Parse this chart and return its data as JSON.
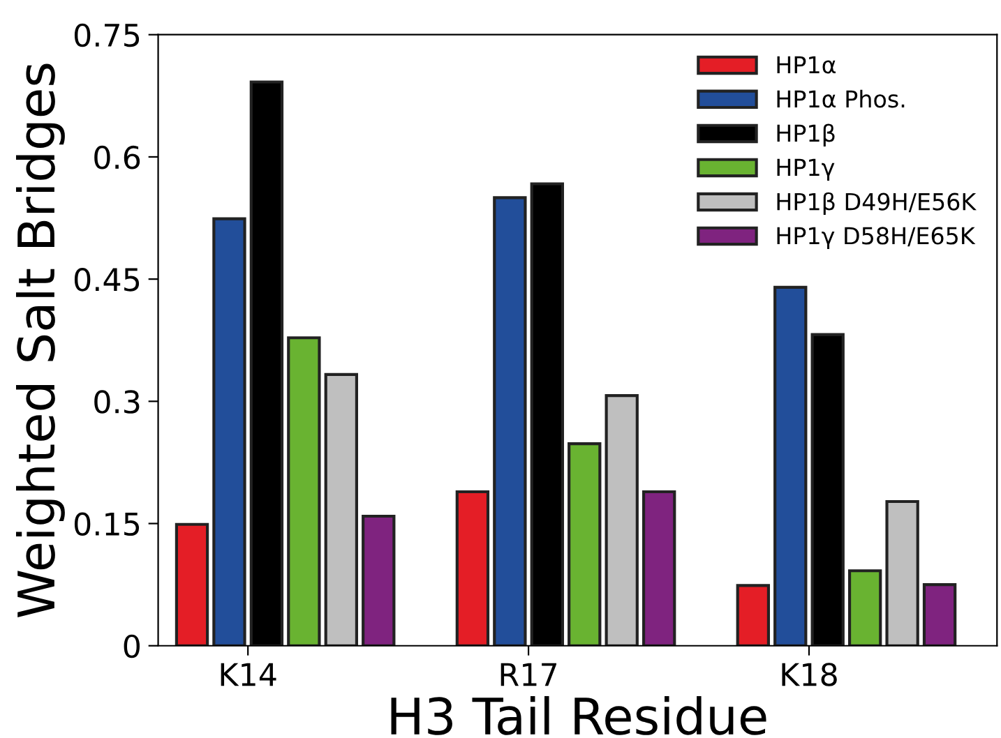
{
  "chart_data": {
    "type": "bar",
    "xlabel": "H3 Tail Residue",
    "ylabel": "Weighted Salt Bridges",
    "categories": [
      "K14",
      "R17",
      "K18"
    ],
    "series": [
      {
        "name": "HP1α",
        "color": "#e41e26",
        "values": [
          0.149,
          0.189,
          0.074
        ]
      },
      {
        "name": "HP1α Phos.",
        "color": "#224e9a",
        "values": [
          0.524,
          0.55,
          0.44
        ]
      },
      {
        "name": "HP1β",
        "color": "#000000",
        "values": [
          0.692,
          0.567,
          0.382
        ]
      },
      {
        "name": "HP1γ",
        "color": "#69b331",
        "values": [
          0.378,
          0.248,
          0.092
        ]
      },
      {
        "name": "HP1β D49H/E56K",
        "color": "#bfbfbf",
        "values": [
          0.333,
          0.307,
          0.177
        ]
      },
      {
        "name": "HP1γ D58H/E65K",
        "color": "#7f237f",
        "values": [
          0.159,
          0.189,
          0.075
        ]
      }
    ],
    "ylim": [
      0,
      0.75
    ],
    "yticks": [
      0,
      0.15,
      0.3,
      0.45,
      0.6,
      0.75
    ],
    "grid": false,
    "legend": "top right"
  }
}
